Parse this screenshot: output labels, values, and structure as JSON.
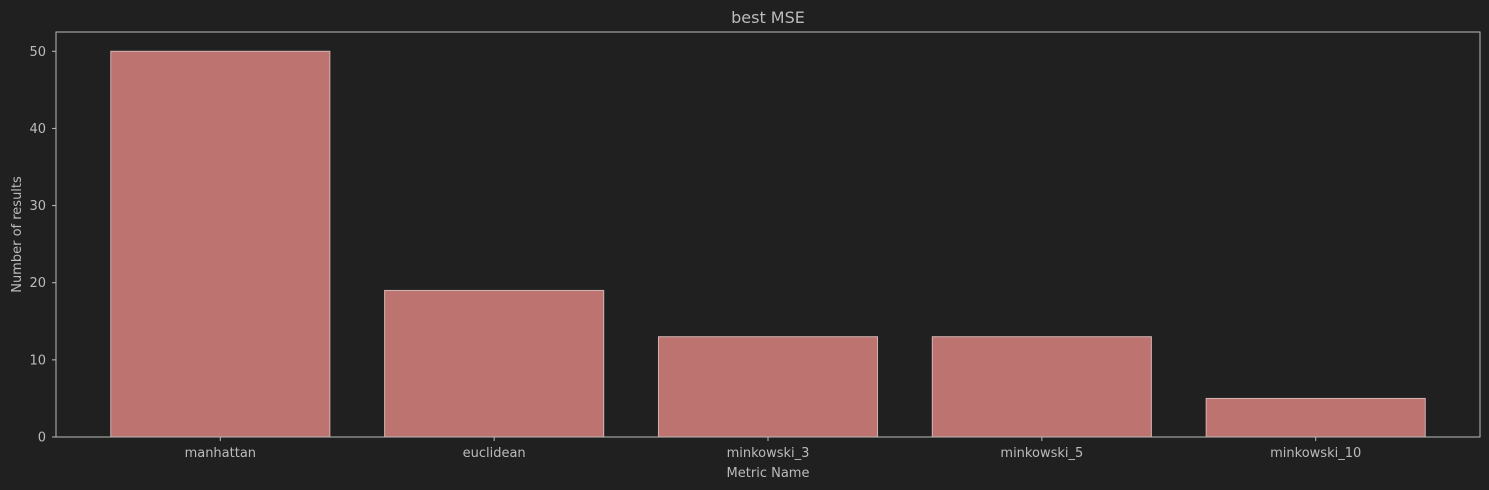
{
  "chart_data": {
    "type": "bar",
    "title": "best MSE",
    "xlabel": "Metric Name",
    "ylabel": "Number of results",
    "categories": [
      "manhattan",
      "euclidean",
      "minkowski_3",
      "minkowski_5",
      "minkowski_10"
    ],
    "values": [
      50,
      19,
      13,
      13,
      5
    ],
    "ylim": [
      0,
      52.5
    ],
    "yticks": [
      "0",
      "10",
      "20",
      "30",
      "40",
      "50"
    ],
    "grid": false,
    "legend": "none"
  },
  "colors": {
    "background": "#202020",
    "bar_fill": "#bd7370",
    "bar_edge": "#d2b4b2",
    "axes": "#bbbbbb",
    "text": "#bbbbbb"
  }
}
